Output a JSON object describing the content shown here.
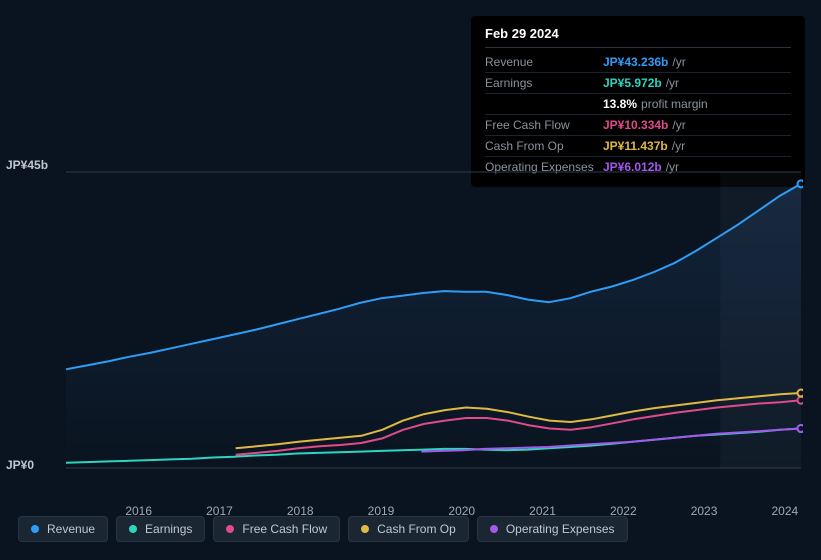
{
  "tooltip": {
    "date": "Feb 29 2024",
    "rows": [
      {
        "label": "Revenue",
        "value": "JP¥43.236b",
        "suffix": "/yr",
        "color": "#2e9df7"
      },
      {
        "label": "Earnings",
        "value": "JP¥5.972b",
        "suffix": "/yr",
        "color": "#2dd4bf"
      },
      {
        "label": "",
        "value": "13.8%",
        "suffix": "profit margin",
        "color": "#ffffff"
      },
      {
        "label": "Free Cash Flow",
        "value": "JP¥10.334b",
        "suffix": "/yr",
        "color": "#e04b8a"
      },
      {
        "label": "Cash From Op",
        "value": "JP¥11.437b",
        "suffix": "/yr",
        "color": "#e0b944"
      },
      {
        "label": "Operating Expenses",
        "value": "JP¥6.012b",
        "suffix": "/yr",
        "color": "#a259ec"
      }
    ]
  },
  "chart": {
    "type": "line",
    "background": "#0a1420",
    "plot_fill_top": "#12243a",
    "plot_fill_bottom": "#0a1420",
    "grid_color": "#2a3b4d",
    "ylim": [
      0,
      45
    ],
    "ylabels": [
      {
        "v": 45,
        "text": "JP¥45b"
      },
      {
        "v": 0,
        "text": "JP¥0"
      }
    ],
    "xlim": [
      2015.1,
      2024.2
    ],
    "xticks": [
      2016,
      2017,
      2018,
      2019,
      2020,
      2021,
      2022,
      2023,
      2024
    ],
    "marker_x": 2024.2,
    "series": [
      {
        "name": "Revenue",
        "color": "#2e9df7",
        "width": 2,
        "start": 2015.1,
        "y": [
          15.0,
          15.6,
          16.2,
          16.9,
          17.5,
          18.2,
          18.9,
          19.6,
          20.3,
          21.0,
          21.8,
          22.6,
          23.4,
          24.2,
          25.1,
          25.8,
          26.2,
          26.6,
          26.9,
          26.8,
          26.8,
          26.3,
          25.6,
          25.2,
          25.8,
          26.8,
          27.6,
          28.6,
          29.8,
          31.2,
          33.0,
          35.0,
          37.0,
          39.2,
          41.4,
          43.2
        ]
      },
      {
        "name": "Earnings",
        "color": "#2dd4bf",
        "width": 2,
        "start": 2015.1,
        "y": [
          0.8,
          0.9,
          1.0,
          1.1,
          1.2,
          1.3,
          1.4,
          1.6,
          1.7,
          1.9,
          2.0,
          2.2,
          2.3,
          2.4,
          2.5,
          2.6,
          2.7,
          2.8,
          2.9,
          2.9,
          2.8,
          2.7,
          2.8,
          3.0,
          3.2,
          3.4,
          3.7,
          4.0,
          4.3,
          4.6,
          4.9,
          5.1,
          5.3,
          5.5,
          5.8,
          6.0
        ]
      },
      {
        "name": "Free Cash Flow",
        "color": "#e04b8a",
        "width": 2,
        "start": 2017.2,
        "y": [
          2.0,
          2.3,
          2.6,
          3.0,
          3.3,
          3.5,
          3.8,
          4.5,
          5.8,
          6.7,
          7.2,
          7.6,
          7.6,
          7.2,
          6.5,
          6.0,
          5.8,
          6.2,
          6.8,
          7.4,
          7.9,
          8.4,
          8.8,
          9.2,
          9.5,
          9.8,
          10.0,
          10.3
        ]
      },
      {
        "name": "Cash From Op",
        "color": "#e0b944",
        "width": 2,
        "start": 2017.2,
        "y": [
          3.0,
          3.3,
          3.6,
          4.0,
          4.3,
          4.6,
          4.9,
          5.8,
          7.2,
          8.2,
          8.8,
          9.2,
          9.0,
          8.5,
          7.8,
          7.2,
          7.0,
          7.4,
          8.0,
          8.6,
          9.1,
          9.5,
          9.9,
          10.3,
          10.6,
          10.9,
          11.2,
          11.4
        ]
      },
      {
        "name": "Operating Expenses",
        "color": "#a259ec",
        "width": 2,
        "start": 2019.5,
        "y": [
          2.5,
          2.6,
          2.7,
          2.9,
          3.0,
          3.1,
          3.2,
          3.4,
          3.6,
          3.8,
          4.0,
          4.3,
          4.6,
          4.9,
          5.2,
          5.4,
          5.6,
          5.8,
          6.0
        ]
      }
    ],
    "legend": [
      {
        "label": "Revenue",
        "color": "#2e9df7"
      },
      {
        "label": "Earnings",
        "color": "#2dd4bf"
      },
      {
        "label": "Free Cash Flow",
        "color": "#e04b8a"
      },
      {
        "label": "Cash From Op",
        "color": "#e0b944"
      },
      {
        "label": "Operating Expenses",
        "color": "#a259ec"
      }
    ]
  }
}
